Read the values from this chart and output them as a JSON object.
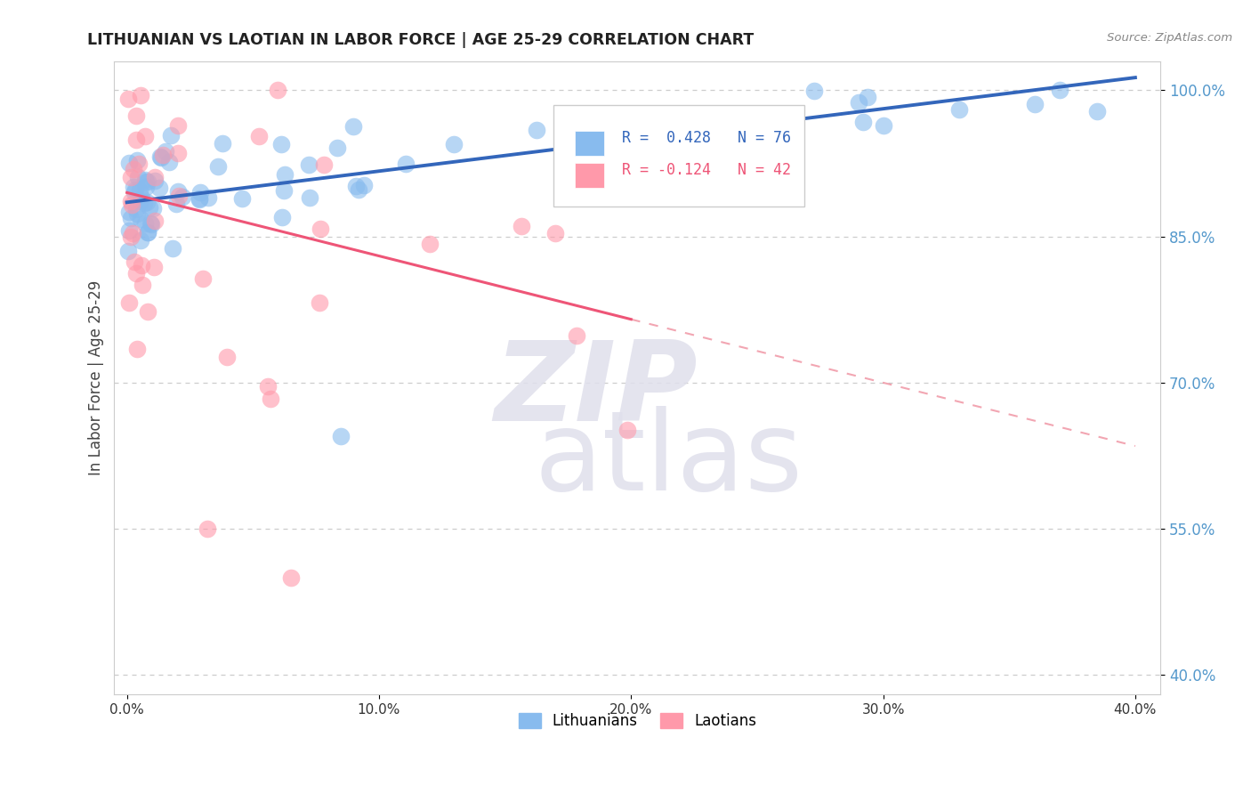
{
  "title": "LITHUANIAN VS LAOTIAN IN LABOR FORCE | AGE 25-29 CORRELATION CHART",
  "source_text": "Source: ZipAtlas.com",
  "ylabel": "In Labor Force | Age 25-29",
  "xlim": [
    -0.5,
    41.0
  ],
  "ylim": [
    38.0,
    103.0
  ],
  "xtick_vals": [
    0.0,
    10.0,
    20.0,
    30.0,
    40.0
  ],
  "ytick_vals": [
    40.0,
    55.0,
    70.0,
    85.0,
    100.0
  ],
  "blue_color": "#88BBEE",
  "pink_color": "#FF99AA",
  "blue_line_color": "#3366BB",
  "pink_line_color": "#EE5577",
  "pink_dash_color": "#EE8899",
  "blue_R": 0.428,
  "blue_N": 76,
  "pink_R": -0.124,
  "pink_N": 42,
  "legend_label_blue": "Lithuanians",
  "legend_label_pink": "Laotians",
  "background_color": "#ffffff",
  "grid_color": "#cccccc",
  "ytick_color": "#5599CC",
  "xtick_color": "#333333",
  "blue_intercept": 88.5,
  "blue_slope": 0.32,
  "pink_intercept": 89.5,
  "pink_slope": -0.65,
  "pink_solid_end": 20.0,
  "watermark_zip_color": "#DDDDE8",
  "watermark_atlas_color": "#DDDDE8"
}
